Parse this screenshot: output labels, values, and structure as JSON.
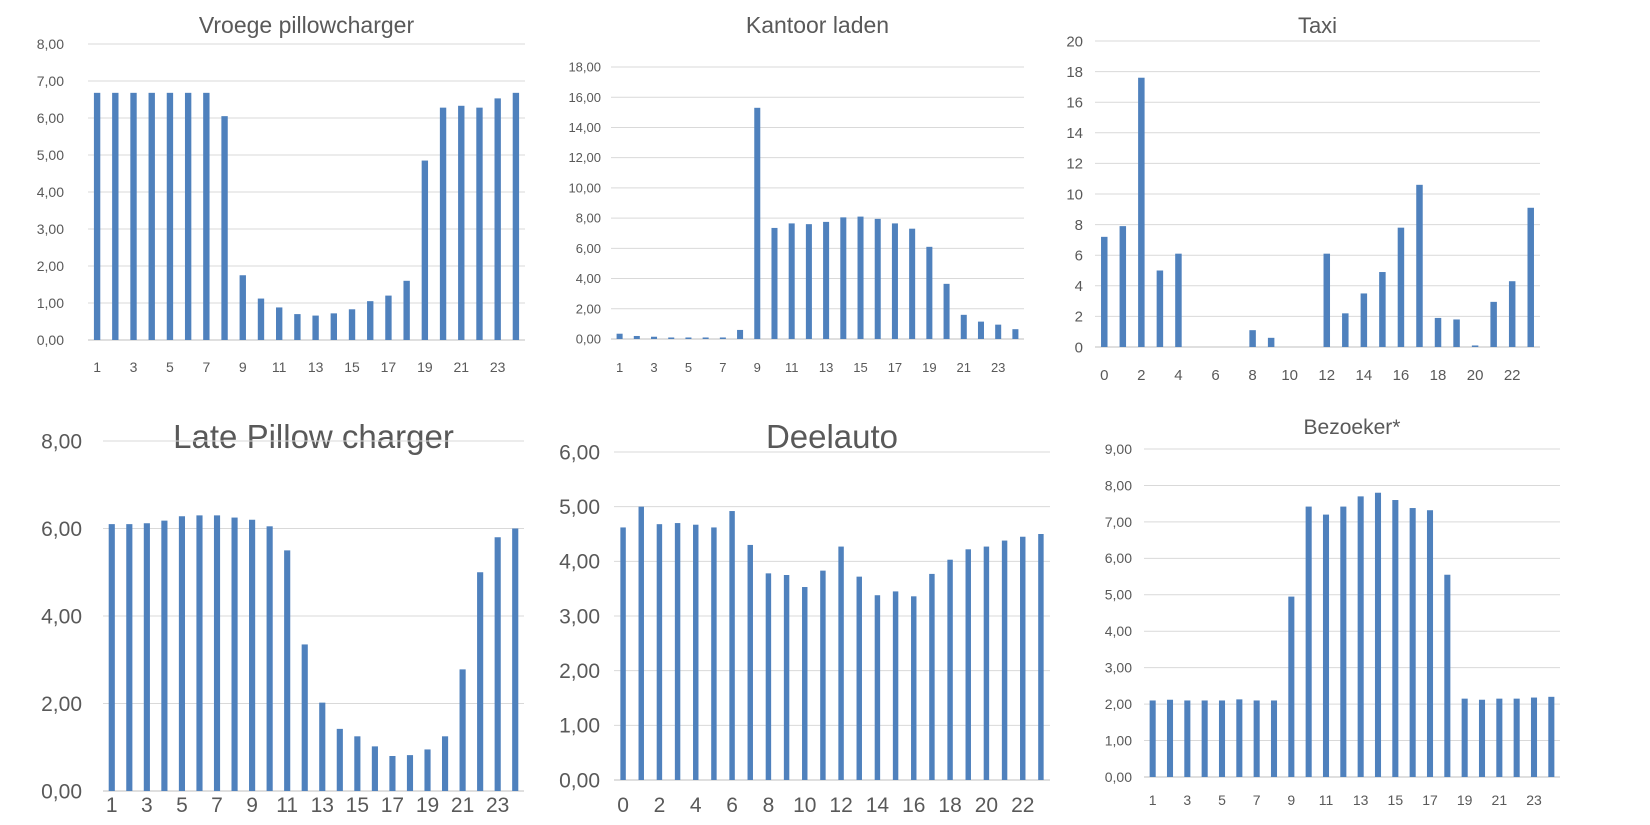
{
  "chart_data": [
    {
      "type": "bar",
      "title": "Vroege pillowcharger",
      "categories": [
        1,
        2,
        3,
        4,
        5,
        6,
        7,
        8,
        9,
        10,
        11,
        12,
        13,
        14,
        15,
        16,
        17,
        18,
        19,
        20,
        21,
        22,
        23,
        24
      ],
      "xtick_labels": [
        "1",
        "3",
        "5",
        "7",
        "9",
        "11",
        "13",
        "15",
        "17",
        "19",
        "21",
        "23"
      ],
      "values": [
        6.68,
        6.68,
        6.68,
        6.68,
        6.68,
        6.68,
        6.68,
        6.05,
        1.75,
        1.12,
        0.88,
        0.7,
        0.66,
        0.72,
        0.83,
        1.05,
        1.2,
        1.6,
        4.85,
        6.28,
        6.33,
        6.28,
        6.53,
        6.68
      ],
      "ylim": [
        0,
        8
      ],
      "yticks": [
        "0,00",
        "1,00",
        "2,00",
        "3,00",
        "4,00",
        "5,00",
        "6,00",
        "7,00",
        "8,00"
      ],
      "color": "#4f81bd",
      "grid": true
    },
    {
      "type": "bar",
      "title": "Kantoor laden",
      "categories": [
        1,
        2,
        3,
        4,
        5,
        6,
        7,
        8,
        9,
        10,
        11,
        12,
        13,
        14,
        15,
        16,
        17,
        18,
        19,
        20,
        21,
        22,
        23,
        24
      ],
      "xtick_labels": [
        "1",
        "3",
        "5",
        "7",
        "9",
        "11",
        "13",
        "15",
        "17",
        "19",
        "21",
        "23"
      ],
      "values": [
        0.35,
        0.2,
        0.15,
        0.1,
        0.1,
        0.1,
        0.1,
        0.6,
        15.3,
        7.35,
        7.65,
        7.6,
        7.75,
        8.05,
        8.1,
        7.95,
        7.65,
        7.3,
        6.1,
        3.65,
        1.6,
        1.15,
        0.95,
        0.65
      ],
      "ylim": [
        0,
        18
      ],
      "yticks": [
        "0,00",
        "2,00",
        "4,00",
        "6,00",
        "8,00",
        "10,00",
        "12,00",
        "14,00",
        "16,00",
        "18,00"
      ],
      "color": "#4f81bd",
      "grid": true
    },
    {
      "type": "bar",
      "title": "Taxi",
      "categories": [
        0,
        1,
        2,
        3,
        4,
        5,
        6,
        7,
        8,
        9,
        10,
        11,
        12,
        13,
        14,
        15,
        16,
        17,
        18,
        19,
        20,
        21,
        22,
        23
      ],
      "xtick_labels": [
        "0",
        "2",
        "4",
        "6",
        "8",
        "10",
        "12",
        "14",
        "16",
        "18",
        "20",
        "22"
      ],
      "values": [
        7.2,
        7.9,
        17.6,
        5.0,
        6.1,
        0,
        0,
        0,
        1.1,
        0.6,
        0,
        0,
        6.1,
        2.2,
        3.5,
        4.9,
        7.8,
        10.6,
        1.9,
        1.8,
        0.1,
        2.95,
        4.3,
        9.1
      ],
      "ylim": [
        0,
        20
      ],
      "yticks": [
        "0",
        "2",
        "4",
        "6",
        "8",
        "10",
        "12",
        "14",
        "16",
        "18",
        "20"
      ],
      "color": "#4f81bd",
      "grid": true
    },
    {
      "type": "bar",
      "title": "Late Pillow charger",
      "categories": [
        1,
        2,
        3,
        4,
        5,
        6,
        7,
        8,
        9,
        10,
        11,
        12,
        13,
        14,
        15,
        16,
        17,
        18,
        19,
        20,
        21,
        22,
        23,
        24
      ],
      "xtick_labels": [
        "1",
        "3",
        "5",
        "7",
        "9",
        "11",
        "13",
        "15",
        "17",
        "19",
        "21",
        "23"
      ],
      "values": [
        6.1,
        6.1,
        6.12,
        6.18,
        6.28,
        6.3,
        6.3,
        6.25,
        6.2,
        6.05,
        5.5,
        3.35,
        2.02,
        1.42,
        1.25,
        1.02,
        0.8,
        0.82,
        0.95,
        1.25,
        2.78,
        5.0,
        5.8,
        6.0
      ],
      "ylim": [
        0,
        8
      ],
      "yticks": [
        "0,00",
        "2,00",
        "4,00",
        "6,00",
        "8,00"
      ],
      "color": "#4f81bd",
      "grid": true
    },
    {
      "type": "bar",
      "title": "Deelauto",
      "categories": [
        0,
        1,
        2,
        3,
        4,
        5,
        6,
        7,
        8,
        9,
        10,
        11,
        12,
        13,
        14,
        15,
        16,
        17,
        18,
        19,
        20,
        21,
        22,
        23
      ],
      "xtick_labels": [
        "0",
        "2",
        "4",
        "6",
        "8",
        "10",
        "12",
        "14",
        "16",
        "18",
        "20",
        "22"
      ],
      "values": [
        4.62,
        5.0,
        4.68,
        4.7,
        4.67,
        4.62,
        4.92,
        4.3,
        3.78,
        3.75,
        3.53,
        3.83,
        4.27,
        3.72,
        3.38,
        3.45,
        3.36,
        3.77,
        4.03,
        4.22,
        4.27,
        4.38,
        4.45,
        4.5
      ],
      "ylim": [
        0,
        6
      ],
      "yticks": [
        "0,00",
        "1,00",
        "2,00",
        "3,00",
        "4,00",
        "5,00",
        "6,00"
      ],
      "color": "#4f81bd",
      "grid": true
    },
    {
      "type": "bar",
      "title": "Bezoeker*",
      "categories": [
        1,
        2,
        3,
        4,
        5,
        6,
        7,
        8,
        9,
        10,
        11,
        12,
        13,
        14,
        15,
        16,
        17,
        18,
        19,
        20,
        21,
        22,
        23,
        24
      ],
      "xtick_labels": [
        "1",
        "3",
        "5",
        "7",
        "9",
        "11",
        "13",
        "15",
        "17",
        "19",
        "21",
        "23"
      ],
      "values": [
        2.1,
        2.12,
        2.1,
        2.1,
        2.1,
        2.13,
        2.1,
        2.1,
        4.95,
        7.42,
        7.2,
        7.42,
        7.7,
        7.8,
        7.6,
        7.38,
        7.32,
        5.55,
        2.15,
        2.12,
        2.15,
        2.15,
        2.18,
        2.2
      ],
      "ylim": [
        0,
        9
      ],
      "yticks": [
        "0,00",
        "1,00",
        "2,00",
        "3,00",
        "4,00",
        "5,00",
        "6,00",
        "7,00",
        "8,00",
        "9,00"
      ],
      "color": "#4f81bd",
      "grid": true
    }
  ]
}
